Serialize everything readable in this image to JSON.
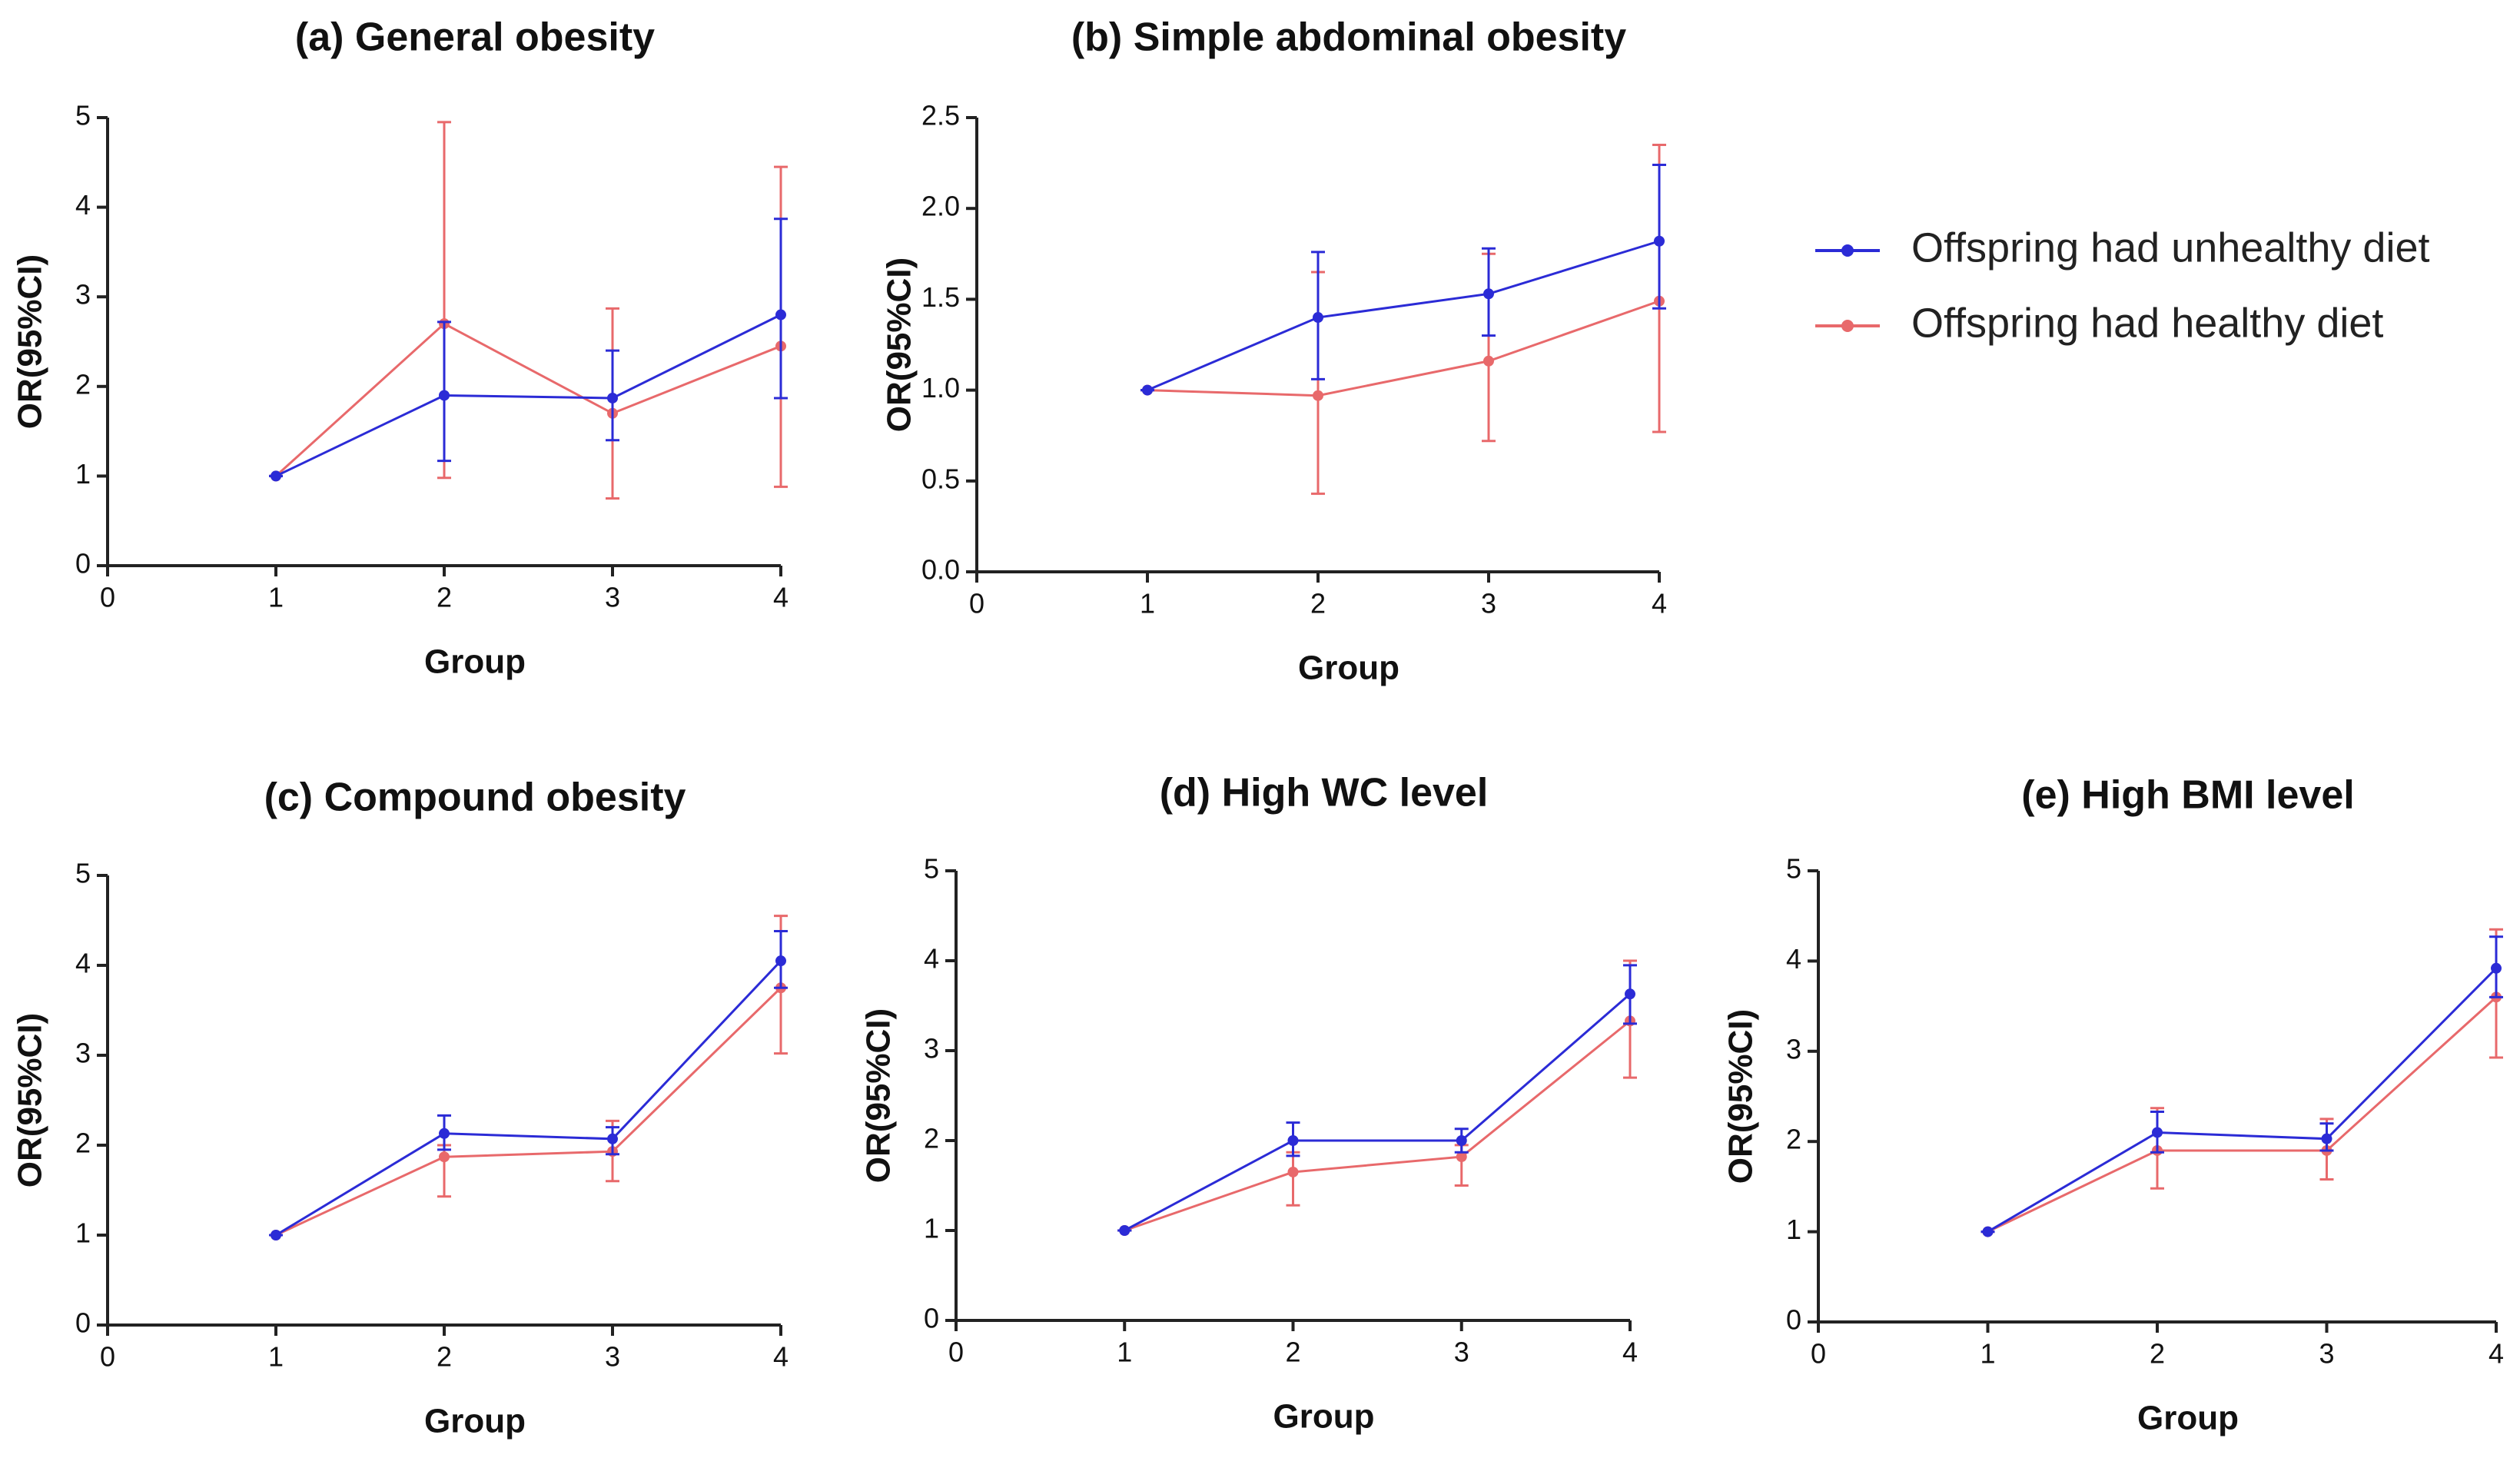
{
  "legend": {
    "position": "right",
    "entries": [
      {
        "name": "Offspring had unhealthy diet",
        "color": "#2b2bd6"
      },
      {
        "name": "Offspring had healthy diet",
        "color": "#e8696b"
      }
    ]
  },
  "chart_data": [
    {
      "type": "line",
      "title": "(a) General obesity",
      "x_label": "Group",
      "y_label": "OR(95%CI)",
      "x": [
        1,
        2,
        3,
        4
      ],
      "xlim": [
        0,
        4
      ],
      "xticks": [
        0,
        1,
        2,
        3,
        4
      ],
      "ylim": [
        0,
        5
      ],
      "yticks": [
        0,
        1,
        2,
        3,
        4,
        5
      ],
      "series": [
        {
          "color": "#2b2bd6",
          "values": [
            1,
            1.9,
            1.87,
            2.8
          ],
          "lower": [
            1,
            1.17,
            1.4,
            1.87
          ],
          "upper": [
            1,
            2.72,
            2.4,
            3.87
          ]
        },
        {
          "color": "#e8696b",
          "values": [
            1,
            2.7,
            1.7,
            2.45
          ],
          "lower": [
            1,
            0.98,
            0.75,
            0.88
          ],
          "upper": [
            1,
            4.95,
            2.87,
            4.45
          ]
        }
      ]
    },
    {
      "type": "line",
      "title": "(b) Simple abdominal obesity",
      "x_label": "Group",
      "y_label": "OR(95%CI)",
      "x": [
        1,
        2,
        3,
        4
      ],
      "xlim": [
        0,
        4
      ],
      "xticks": [
        0,
        1,
        2,
        3,
        4
      ],
      "ylim": [
        0,
        2.5
      ],
      "yticks": [
        {
          "value": 0,
          "label": "0.0"
        },
        0.5,
        {
          "value": 1,
          "label": "1.0"
        },
        1.5,
        {
          "value": 2,
          "label": "2.0"
        },
        2.5
      ],
      "series": [
        {
          "color": "#2b2bd6",
          "values": [
            1,
            1.4,
            1.53,
            1.82
          ],
          "lower": [
            1,
            1.06,
            1.3,
            1.45
          ],
          "upper": [
            1,
            1.76,
            1.78,
            2.24
          ]
        },
        {
          "color": "#e8696b",
          "values": [
            1,
            0.97,
            1.16,
            1.49
          ],
          "lower": [
            1,
            0.43,
            0.72,
            0.77
          ],
          "upper": [
            1,
            1.65,
            1.75,
            2.35
          ]
        }
      ]
    },
    {
      "type": "line",
      "title": "(c) Compound obesity",
      "x_label": "Group",
      "y_label": "OR(95%CI)",
      "x": [
        1,
        2,
        3,
        4
      ],
      "xlim": [
        0,
        4
      ],
      "xticks": [
        0,
        1,
        2,
        3,
        4
      ],
      "ylim": [
        0,
        5
      ],
      "yticks": [
        0,
        1,
        2,
        3,
        4,
        5
      ],
      "series": [
        {
          "color": "#2b2bd6",
          "values": [
            1,
            2.13,
            2.07,
            4.05
          ],
          "lower": [
            1,
            1.95,
            1.9,
            3.75
          ],
          "upper": [
            1,
            2.33,
            2.2,
            4.38
          ]
        },
        {
          "color": "#e8696b",
          "values": [
            1,
            1.87,
            1.93,
            3.75
          ],
          "lower": [
            1,
            1.43,
            1.6,
            3.02
          ],
          "upper": [
            1,
            2.0,
            2.27,
            4.55
          ]
        }
      ]
    },
    {
      "type": "line",
      "title": "(d) High WC level",
      "x_label": "Group",
      "y_label": "OR(95%CI)",
      "x": [
        1,
        2,
        3,
        4
      ],
      "xlim": [
        0,
        4
      ],
      "xticks": [
        0,
        1,
        2,
        3,
        4
      ],
      "ylim": [
        0,
        5
      ],
      "yticks": [
        0,
        1,
        2,
        3,
        4,
        5
      ],
      "series": [
        {
          "color": "#2b2bd6",
          "values": [
            1,
            2.0,
            2.0,
            3.63
          ],
          "lower": [
            1,
            1.83,
            1.87,
            3.3
          ],
          "upper": [
            1,
            2.2,
            2.13,
            3.95
          ]
        },
        {
          "color": "#e8696b",
          "values": [
            1,
            1.65,
            1.82,
            3.33
          ],
          "lower": [
            1,
            1.28,
            1.5,
            2.7
          ],
          "upper": [
            1,
            1.87,
            1.95,
            4.0
          ]
        }
      ]
    },
    {
      "type": "line",
      "title": "(e) High BMI level",
      "x_label": "Group",
      "y_label": "OR(95%CI)",
      "x": [
        1,
        2,
        3,
        4
      ],
      "xlim": [
        0,
        4
      ],
      "xticks": [
        0,
        1,
        2,
        3,
        4
      ],
      "ylim": [
        0,
        5
      ],
      "yticks": [
        0,
        1,
        2,
        3,
        4,
        5
      ],
      "series": [
        {
          "color": "#2b2bd6",
          "values": [
            1,
            2.1,
            2.03,
            3.92
          ],
          "lower": [
            1,
            1.88,
            1.9,
            3.6
          ],
          "upper": [
            1,
            2.33,
            2.2,
            4.27
          ]
        },
        {
          "color": "#e8696b",
          "values": [
            1,
            1.9,
            1.9,
            3.6
          ],
          "lower": [
            1,
            1.48,
            1.58,
            2.93
          ],
          "upper": [
            1,
            2.37,
            2.25,
            4.35
          ]
        }
      ]
    }
  ]
}
